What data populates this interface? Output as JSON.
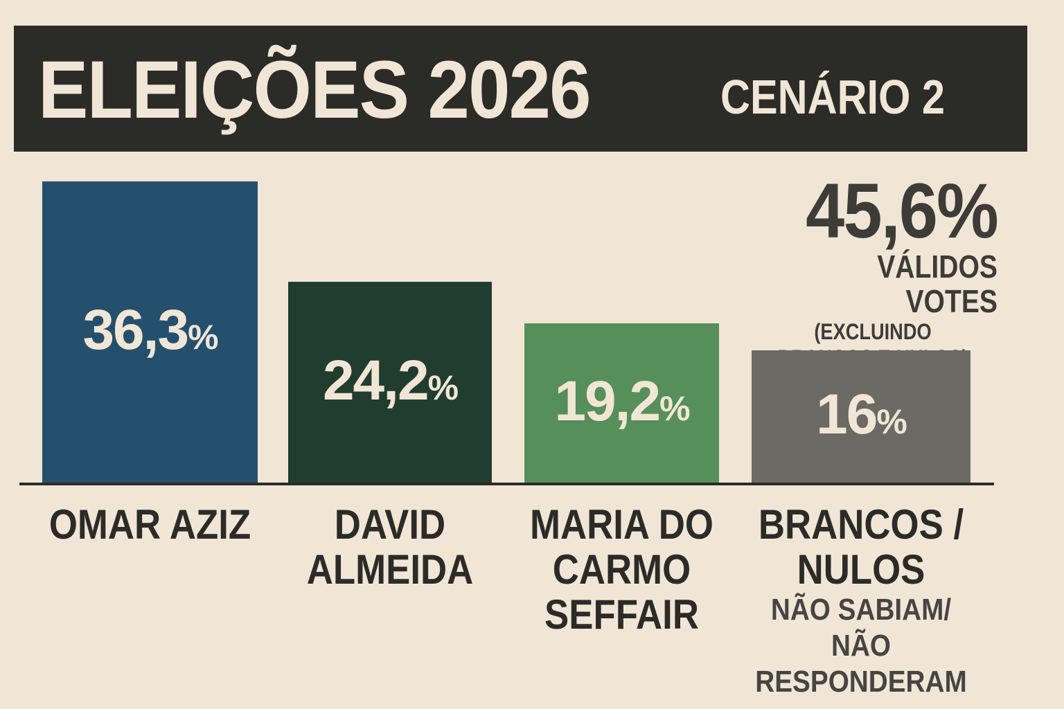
{
  "header": {
    "title": "ELEIÇÕES 2026",
    "subtitle": "CENÁRIO 2"
  },
  "annotation": {
    "value": "45,6%",
    "label": "VÁLIDOS VOTES",
    "note": "(EXCLUINDO BRANCOS E NULOS)"
  },
  "chart_data": {
    "type": "bar",
    "title": "ELEIÇÕES 2026",
    "subtitle": "CENÁRIO 2",
    "categories": [
      "OMAR AZIZ",
      "DAVID ALMEIDA",
      "MARIA DO CARMO SEFFAIR",
      "BRANCOS / NULOS"
    ],
    "category_notes": [
      "",
      "",
      "",
      "NÃO SABIAM/ NÃO RESPONDERAM"
    ],
    "values": [
      36.3,
      24.2,
      19.2,
      16
    ],
    "value_labels": [
      "36,3",
      "24,2",
      "19,2",
      "16"
    ],
    "unit": "%",
    "colors": [
      "#24506e",
      "#213d30",
      "#578f5a",
      "#6b6a65"
    ],
    "grid": false,
    "legend": "none"
  }
}
